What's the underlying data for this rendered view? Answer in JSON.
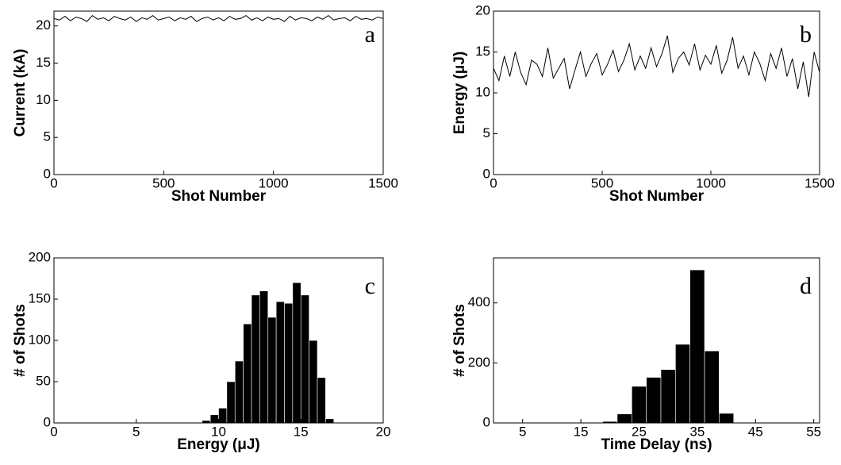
{
  "chart_data": [
    {
      "type": "line",
      "xlabel": "Shot Number",
      "ylabel": "Current (kA)",
      "annotation": "a",
      "color": "#000000",
      "x": [
        0,
        25,
        50,
        75,
        100,
        125,
        150,
        175,
        200,
        225,
        250,
        275,
        300,
        325,
        350,
        375,
        400,
        425,
        450,
        475,
        500,
        525,
        550,
        575,
        600,
        625,
        650,
        675,
        700,
        725,
        750,
        775,
        800,
        825,
        850,
        875,
        900,
        925,
        950,
        975,
        1000,
        1025,
        1050,
        1075,
        1100,
        1125,
        1150,
        1175,
        1200,
        1225,
        1250,
        1275,
        1300,
        1325,
        1350,
        1375,
        1400,
        1425,
        1450,
        1475,
        1500
      ],
      "values": [
        21.0,
        20.8,
        21.3,
        20.7,
        21.2,
        21.0,
        20.6,
        21.4,
        20.9,
        21.1,
        20.7,
        21.3,
        21.0,
        20.8,
        21.2,
        20.6,
        21.1,
        20.9,
        21.4,
        20.8,
        21.0,
        21.2,
        20.7,
        21.1,
        20.9,
        21.3,
        20.6,
        21.0,
        21.2,
        20.8,
        21.1,
        20.7,
        21.3,
        20.9,
        21.0,
        21.4,
        20.8,
        21.1,
        20.7,
        21.2,
        20.9,
        21.0,
        20.6,
        21.3,
        20.8,
        21.1,
        21.0,
        20.7,
        21.2,
        20.9,
        21.4,
        20.8,
        21.0,
        21.1,
        20.7,
        21.3,
        20.9,
        21.0,
        20.8,
        21.2,
        21.0
      ],
      "xlim": [
        0,
        1500
      ],
      "xticks": [
        0,
        500,
        1000,
        1500
      ],
      "ylim": [
        0,
        22
      ],
      "yticks": [
        0,
        5,
        10,
        15,
        20
      ]
    },
    {
      "type": "line",
      "xlabel": "Shot Number",
      "ylabel": "Energy (μJ)",
      "annotation": "b",
      "color": "#000000",
      "x": [
        0,
        25,
        50,
        75,
        100,
        125,
        150,
        175,
        200,
        225,
        250,
        275,
        300,
        325,
        350,
        375,
        400,
        425,
        450,
        475,
        500,
        525,
        550,
        575,
        600,
        625,
        650,
        675,
        700,
        725,
        750,
        775,
        800,
        825,
        850,
        875,
        900,
        925,
        950,
        975,
        1000,
        1025,
        1050,
        1075,
        1100,
        1125,
        1150,
        1175,
        1200,
        1225,
        1250,
        1275,
        1300,
        1325,
        1350,
        1375,
        1400,
        1425,
        1450,
        1475,
        1500
      ],
      "values": [
        13,
        11.5,
        14.5,
        12,
        15,
        12.5,
        11,
        14,
        13.5,
        12,
        15.5,
        11.8,
        13,
        14.2,
        10.5,
        12.8,
        15,
        12,
        13.6,
        14.8,
        12.2,
        13.5,
        15.2,
        12.6,
        14,
        16,
        12.8,
        14.5,
        13,
        15.5,
        13.2,
        14.8,
        17,
        12.5,
        14.2,
        15,
        13.4,
        16,
        12.8,
        14.6,
        13.5,
        15.8,
        12.4,
        14,
        16.8,
        13,
        14.5,
        12.2,
        15,
        13.6,
        11.5,
        14.8,
        13,
        15.5,
        12,
        14.2,
        10.5,
        13.8,
        9.5,
        15,
        12.5
      ],
      "xlim": [
        0,
        1500
      ],
      "xticks": [
        0,
        500,
        1000,
        1500
      ],
      "ylim": [
        0,
        20
      ],
      "yticks": [
        0,
        5,
        10,
        15,
        20
      ]
    },
    {
      "type": "histogram",
      "xlabel": "Energy (μJ)",
      "ylabel": "# of Shots",
      "annotation": "c",
      "color": "#000000",
      "bins": [
        9,
        9.5,
        10,
        10.5,
        11,
        11.5,
        12,
        12.5,
        13,
        13.5,
        14,
        14.5,
        15,
        15.5,
        16,
        16.5,
        17
      ],
      "values": [
        3,
        10,
        18,
        50,
        75,
        120,
        155,
        160,
        128,
        147,
        145,
        170,
        155,
        100,
        55,
        5
      ],
      "xlim": [
        0,
        20
      ],
      "xticks": [
        0,
        5,
        10,
        15,
        20
      ],
      "ylim": [
        0,
        200
      ],
      "yticks": [
        0,
        50,
        100,
        150,
        200
      ]
    },
    {
      "type": "histogram",
      "xlabel": "Time Delay (ns)",
      "ylabel": "# of Shots",
      "annotation": "d",
      "color": "#000000",
      "bins": [
        1.25,
        3.75,
        6.25,
        8.75,
        11.25,
        13.75,
        16.25,
        18.75,
        21.25,
        23.75,
        26.25,
        28.75,
        31.25,
        33.75,
        36.25,
        38.75,
        41.25
      ],
      "values": [
        2,
        2,
        2,
        0,
        0,
        0,
        2,
        5,
        30,
        122,
        152,
        178,
        262,
        510,
        240,
        32
      ],
      "xlim": [
        0,
        56
      ],
      "xticks": [
        5,
        15,
        25,
        35,
        45,
        55
      ],
      "ylim": [
        0,
        550
      ],
      "yticks": [
        0,
        200,
        400
      ]
    }
  ]
}
